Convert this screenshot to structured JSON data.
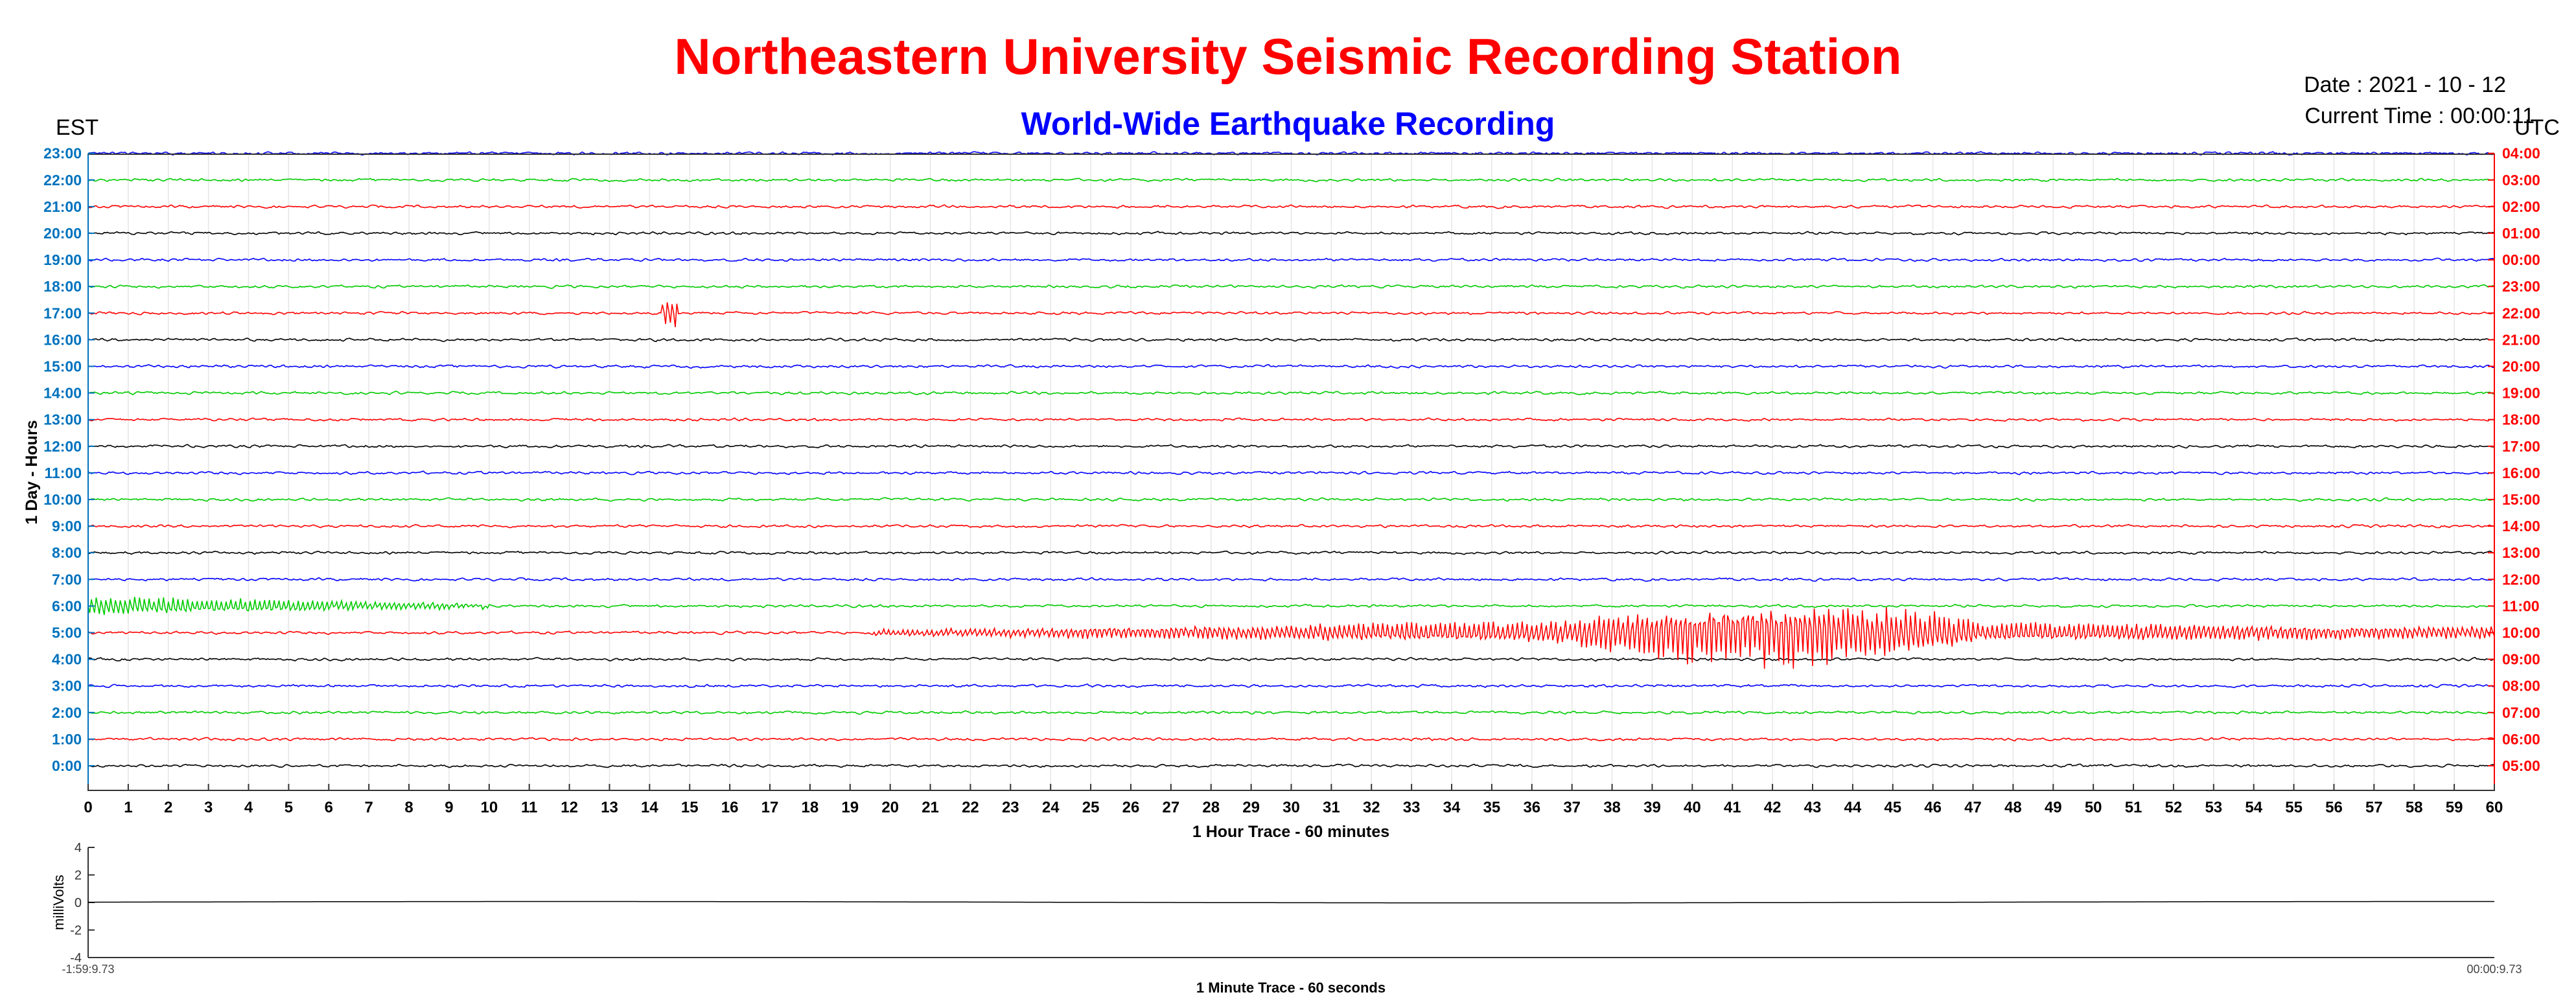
{
  "header": {
    "title": "Northeastern University Seismic Recording Station",
    "subtitle": "World-Wide Earthquake Recording",
    "date": "Date : 2021 - 10 - 12",
    "current_time": "Current Time : 00:00:11",
    "left_zone": "EST",
    "right_zone": "UTC"
  },
  "colors": {
    "title": "#ff0000",
    "subtitle": "#0000ff",
    "left_ticks": "#0072bd",
    "right_ticks": "#ff0000",
    "trace_cycle": [
      "#000000",
      "#ff0000",
      "#00cc00",
      "#0000ff"
    ]
  },
  "chart_data": [
    {
      "type": "line",
      "name": "helicorder",
      "xlabel": "1 Hour Trace - 60 minutes",
      "ylabel": "1 Day - Hours",
      "xlim": [
        0,
        60
      ],
      "x_ticks": [
        "0",
        "1",
        "2",
        "3",
        "4",
        "5",
        "6",
        "7",
        "8",
        "9",
        "10",
        "11",
        "12",
        "13",
        "14",
        "15",
        "16",
        "17",
        "18",
        "19",
        "20",
        "21",
        "22",
        "23",
        "24",
        "25",
        "26",
        "27",
        "28",
        "29",
        "30",
        "31",
        "32",
        "33",
        "34",
        "35",
        "36",
        "37",
        "38",
        "39",
        "40",
        "41",
        "42",
        "43",
        "44",
        "45",
        "46",
        "47",
        "48",
        "49",
        "50",
        "51",
        "52",
        "53",
        "54",
        "55",
        "56",
        "57",
        "58",
        "59",
        "60"
      ],
      "left_ticks": [
        "0:00",
        "1:00",
        "2:00",
        "3:00",
        "4:00",
        "5:00",
        "6:00",
        "7:00",
        "8:00",
        "9:00",
        "10:00",
        "11:00",
        "12:00",
        "13:00",
        "14:00",
        "15:00",
        "16:00",
        "17:00",
        "18:00",
        "19:00",
        "20:00",
        "21:00",
        "22:00",
        "23:00"
      ],
      "right_ticks": [
        "05:00",
        "06:00",
        "07:00",
        "08:00",
        "09:00",
        "10:00",
        "11:00",
        "12:00",
        "13:00",
        "14:00",
        "15:00",
        "16:00",
        "17:00",
        "18:00",
        "19:00",
        "20:00",
        "21:00",
        "22:00",
        "23:00",
        "00:00",
        "01:00",
        "02:00",
        "03:00",
        "04:00"
      ],
      "grid": true,
      "events": [
        {
          "row": 5,
          "start_min": 19.5,
          "peak_start_min": 37,
          "peak_end_min": 47,
          "end_min": 60,
          "amplitude": "large"
        },
        {
          "row": 6,
          "start_min": 0,
          "end_min": 10,
          "amplitude": "medium"
        },
        {
          "row": 17,
          "start_min": 14.3,
          "end_min": 14.7,
          "amplitude": "spike"
        }
      ]
    },
    {
      "type": "line",
      "name": "one-minute",
      "xlabel": "1 Minute Trace  - 60 seconds",
      "ylabel": "milliVolts",
      "ylim": [
        -4,
        4
      ],
      "y_ticks": [
        "4",
        "2",
        "0",
        "-2",
        "-4"
      ],
      "x_start_label": "-1:59:9.73",
      "x_end_label": "00:00:9.73"
    }
  ]
}
